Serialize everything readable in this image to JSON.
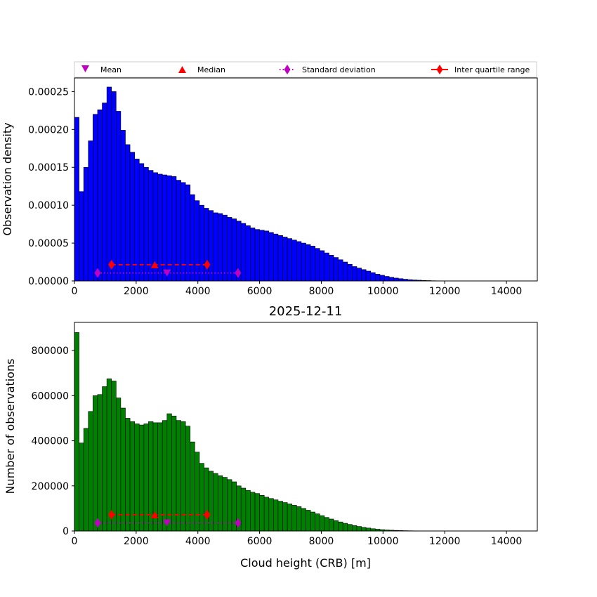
{
  "legend": {
    "mean_label": "Mean",
    "median_label": "Median",
    "std_label": "Standard deviation",
    "iqr_label": "Inter quartile range"
  },
  "chart_data": [
    {
      "type": "bar",
      "panel": "top",
      "title": "",
      "xlabel": "",
      "ylabel": "Observation density",
      "xlim": [
        0,
        15000
      ],
      "ylim": [
        0,
        0.000268
      ],
      "bin_width": 150,
      "xticks": [
        "0",
        "2000",
        "4000",
        "6000",
        "8000",
        "10000",
        "12000",
        "14000"
      ],
      "yticks": [
        "0.00000",
        "0.00005",
        "0.00010",
        "0.00015",
        "0.00020",
        "0.00025"
      ],
      "bar_color": "#0000ff",
      "values": [
        0.000216,
        0.000118,
        0.00015,
        0.000185,
        0.00022,
        0.000226,
        0.000235,
        0.000256,
        0.00025,
        0.000224,
        0.000199,
        0.00018,
        0.00017,
        0.000161,
        0.000155,
        0.00015,
        0.000146,
        0.000143,
        0.000141,
        0.00014,
        0.000139,
        0.000138,
        0.000133,
        0.00013,
        0.000127,
        0.000114,
        0.000106,
        0.0001,
        9.6e-05,
        9.3e-05,
        9e-05,
        8.9e-05,
        8.7e-05,
        8.4e-05,
        8.2e-05,
        7.9e-05,
        7.6e-05,
        7.3e-05,
        7e-05,
        6.8e-05,
        6.7e-05,
        6.6e-05,
        6.4e-05,
        6.2e-05,
        6e-05,
        5.8e-05,
        5.6e-05,
        5.4e-05,
        5.2e-05,
        5e-05,
        4.8e-05,
        4.6e-05,
        4.3e-05,
        4e-05,
        3.7e-05,
        3.4e-05,
        3.1e-05,
        2.8e-05,
        2.5e-05,
        2.2e-05,
        1.9e-05,
        1.7e-05,
        1.5e-05,
        1.3e-05,
        1.1e-05,
        9e-06,
        7.5e-06,
        6e-06,
        4.8e-06,
        3.8e-06,
        3e-06,
        2.3e-06,
        1.7e-06,
        1.3e-06,
        1e-06,
        7e-07,
        5e-07,
        3e-07,
        2e-07,
        1e-07,
        7e-08,
        4e-08,
        2e-08,
        1e-08
      ],
      "stats": {
        "mean": 3000,
        "mean_y": 1.05e-05,
        "std_low": 750,
        "std_high": 5300,
        "std_y": 1.05e-05,
        "median": 2600,
        "median_y": 2.15e-05,
        "q1": 1200,
        "q3": 4300,
        "iqr_y": 2.15e-05
      }
    },
    {
      "type": "bar",
      "panel": "bottom",
      "title": "2025-12-11",
      "xlabel": "Cloud height (CRB) [m]",
      "ylabel": "Number of observations",
      "xlim": [
        0,
        15000
      ],
      "ylim": [
        0,
        925000
      ],
      "bin_width": 150,
      "xticks": [
        "0",
        "2000",
        "4000",
        "6000",
        "8000",
        "10000",
        "12000",
        "14000"
      ],
      "yticks": [
        "0",
        "200000",
        "400000",
        "600000",
        "800000"
      ],
      "bar_color": "#008000",
      "values": [
        880000,
        390000,
        455000,
        530000,
        600000,
        605000,
        640000,
        675000,
        665000,
        590000,
        545000,
        500000,
        485000,
        475000,
        470000,
        475000,
        485000,
        480000,
        480000,
        490000,
        520000,
        510000,
        490000,
        485000,
        465000,
        395000,
        350000,
        300000,
        280000,
        265000,
        255000,
        245000,
        238000,
        228000,
        218000,
        200000,
        190000,
        180000,
        172000,
        166000,
        158000,
        150000,
        144000,
        138000,
        132000,
        126000,
        120000,
        114000,
        108000,
        100000,
        92000,
        84000,
        76000,
        68000,
        60000,
        53000,
        46000,
        40000,
        34000,
        29000,
        24000,
        20000,
        16000,
        13000,
        10000,
        8000,
        6000,
        4500,
        3500,
        2600,
        1900,
        1400,
        1000,
        700,
        500,
        350,
        250,
        150,
        100,
        60,
        40,
        20,
        10,
        5
      ],
      "stats": {
        "mean": 3000,
        "mean_y": 36000,
        "std_low": 750,
        "std_high": 5300,
        "std_y": 36000,
        "median": 2600,
        "median_y": 72000,
        "q1": 1200,
        "q3": 4300,
        "iqr_y": 72000
      }
    }
  ]
}
